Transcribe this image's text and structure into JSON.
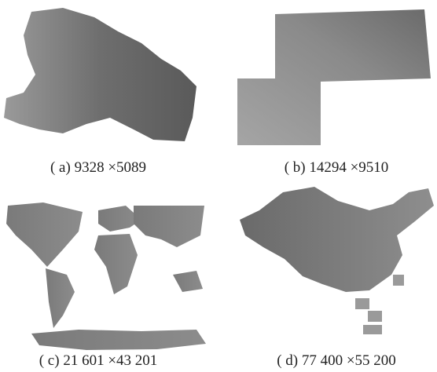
{
  "panels": [
    {
      "label": "( a)",
      "caption": "9328 ×5089"
    },
    {
      "label": "( b)",
      "caption": "14294 ×9510"
    },
    {
      "label": "( c)",
      "caption": "21 601 ×43 201"
    },
    {
      "label": "( d)",
      "caption": "77 400 ×55 200"
    }
  ]
}
